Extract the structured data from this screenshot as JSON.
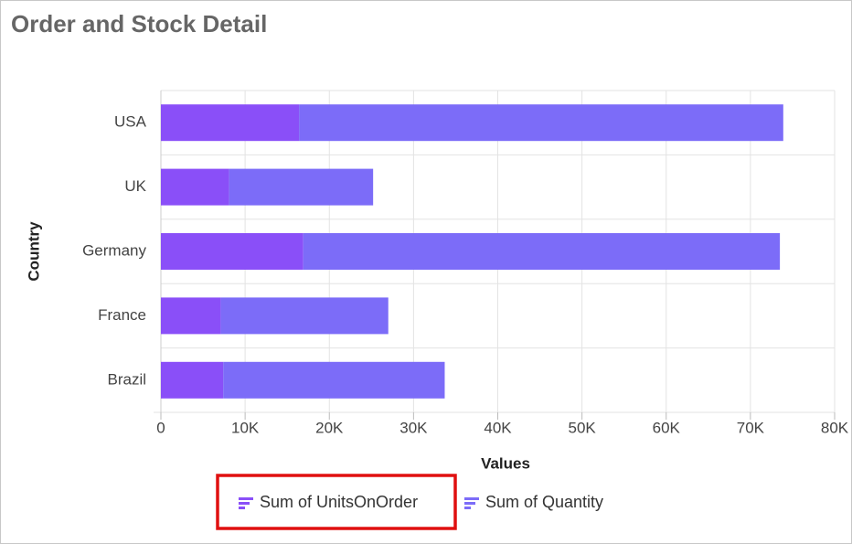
{
  "chart_data": {
    "type": "stacked-bar-horizontal",
    "title": "Order and Stock Detail",
    "x_label": "Values",
    "y_label": "Country",
    "categories": [
      "USA",
      "UK",
      "Germany",
      "France",
      "Brazil"
    ],
    "series": [
      {
        "name": "Sum of UnitsOnOrder",
        "color": "#8a4ff8",
        "values": [
          16400,
          8100,
          16900,
          7100,
          7400
        ]
      },
      {
        "name": "Sum of Quantity",
        "color": "#7c6cf8",
        "values": [
          57500,
          17100,
          56600,
          19900,
          26300
        ]
      }
    ],
    "xlim": [
      0,
      80000
    ],
    "xticks": [
      0,
      {
        "value": 10000,
        "label": "10K"
      },
      {
        "value": 20000,
        "label": "20K"
      },
      {
        "value": 30000,
        "label": "30K"
      },
      {
        "value": 40000,
        "label": "40K"
      },
      {
        "value": 50000,
        "label": "50K"
      },
      {
        "value": 60000,
        "label": "60K"
      },
      {
        "value": 70000,
        "label": "70K"
      },
      {
        "value": 80000,
        "label": "80K"
      }
    ],
    "grid": true
  }
}
